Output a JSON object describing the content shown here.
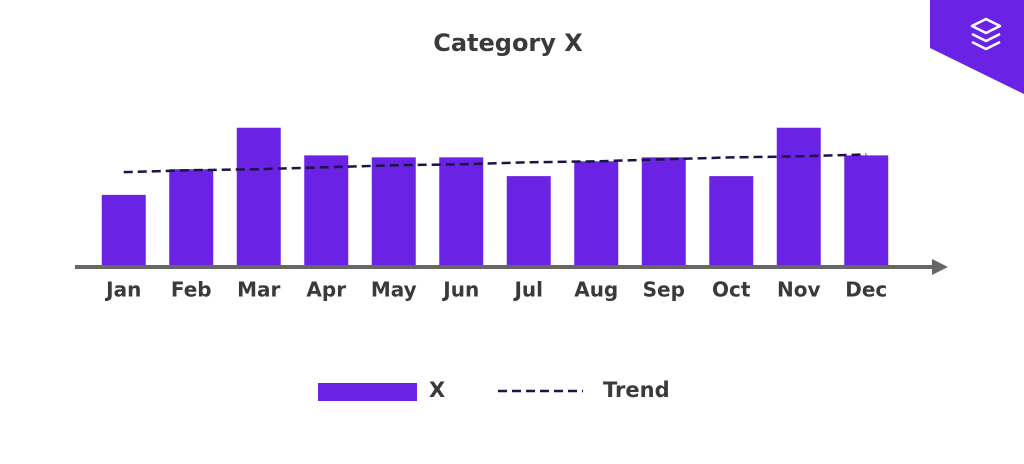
{
  "chart_data": {
    "type": "bar",
    "title": "Category X",
    "categories": [
      "Jan",
      "Feb",
      "Mar",
      "Apr",
      "May",
      "Jun",
      "Jul",
      "Aug",
      "Sep",
      "Oct",
      "Nov",
      "Dec"
    ],
    "series": [
      {
        "name": "X",
        "type": "bar",
        "color": "#6a22e4",
        "values": [
          71,
          97,
          139,
          111,
          109,
          109,
          90,
          105,
          109,
          90,
          139,
          111
        ]
      },
      {
        "name": "Trend",
        "type": "line",
        "color": "#1c1448",
        "values": [
          94,
          96,
          97,
          99,
          101,
          102,
          104,
          105,
          107,
          109,
          110,
          112
        ]
      }
    ],
    "ylim": [
      0,
      160
    ],
    "grid": false
  }
}
